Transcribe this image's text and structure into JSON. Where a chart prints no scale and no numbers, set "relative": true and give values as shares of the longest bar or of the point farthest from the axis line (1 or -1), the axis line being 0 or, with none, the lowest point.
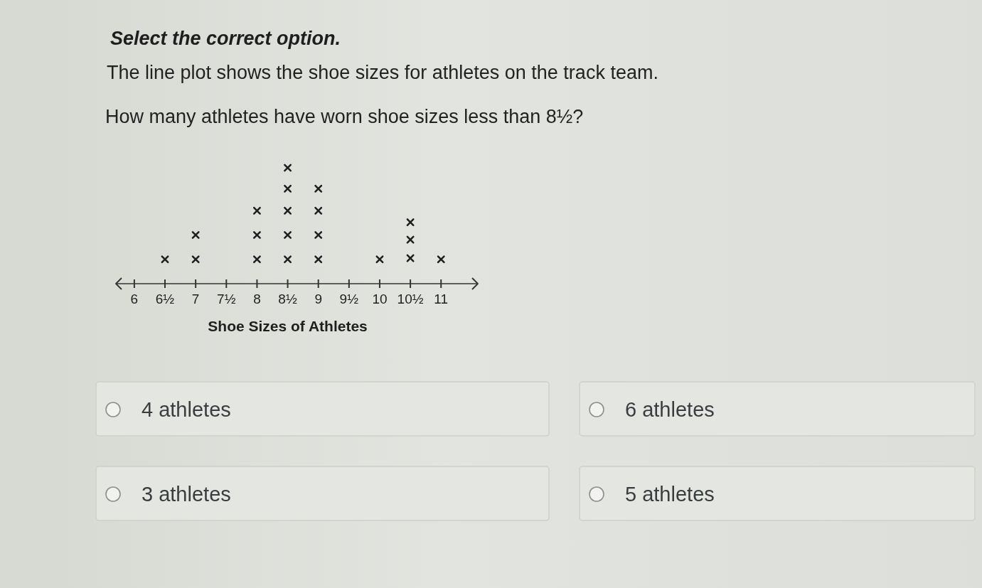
{
  "chart_data": {
    "type": "scatter",
    "title": "Select the correct option.",
    "subtitle": "The line plot shows the shoe sizes for athletes on the track team.",
    "xlabel": "Shoe Sizes of Athletes",
    "annotations": [
      "How many athletes have worn shoe sizes less than 8½?",
      "4 athletes",
      "6 athletes",
      "3 athletes",
      "5 athletes"
    ],
    "x": [
      6.5,
      7,
      7,
      8,
      8,
      8,
      8.5,
      8.5,
      8.5,
      8.5,
      8.5,
      9,
      9,
      9,
      9,
      10,
      10.5,
      10.5,
      10.5,
      11
    ],
    "values": [
      0.21,
      0.21,
      0.42,
      0.21,
      0.42,
      0.63,
      0.21,
      0.42,
      0.63,
      0.82,
      1,
      0.21,
      0.42,
      0.63,
      0.82,
      0.21,
      0.22,
      0.38,
      0.53,
      0.21
    ],
    "relative": true,
    "color": "#1e1e1e",
    "marker": "cross",
    "tick_labels": "x",
    "xlim": [
      5.7,
      11.6
    ],
    "xticks": [
      6,
      {
        "value": 6.5,
        "label": "6½"
      },
      7,
      {
        "value": 7.5,
        "label": "7½"
      },
      8,
      {
        "value": 8.5,
        "label": "8½"
      },
      9,
      {
        "value": 9.5,
        "label": "9½"
      },
      10,
      {
        "value": 10.5,
        "label": "10½"
      },
      11
    ]
  }
}
